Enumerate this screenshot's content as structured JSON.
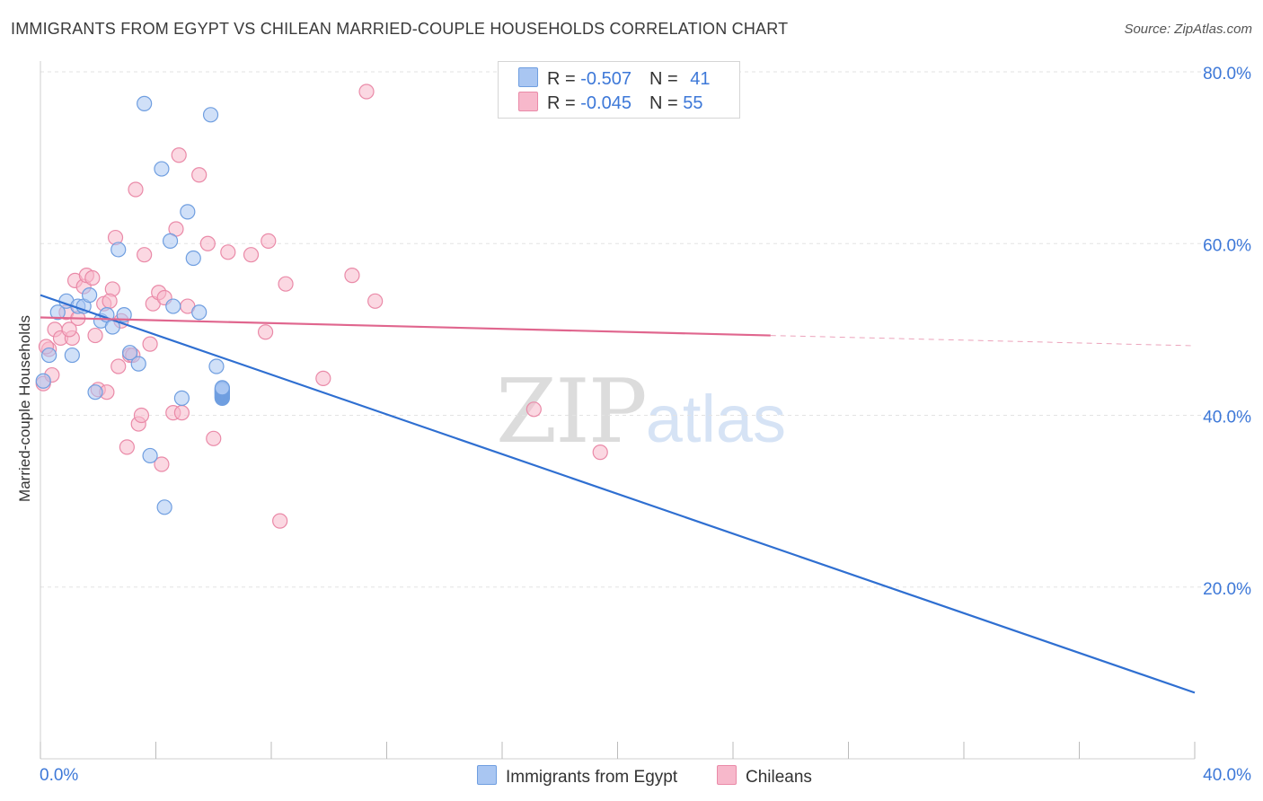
{
  "title": "IMMIGRANTS FROM EGYPT VS CHILEAN MARRIED-COUPLE HOUSEHOLDS CORRELATION CHART",
  "source": "Source: ZipAtlas.com",
  "watermark": {
    "part1": "ZIP",
    "part2": "atlas"
  },
  "legend": {
    "rows": [
      {
        "r_label": "R = ",
        "r_value": "-0.507",
        "n_label": "N = ",
        "n_value": "41",
        "color": "#a9c6f2"
      },
      {
        "r_label": "R = ",
        "r_value": "-0.045",
        "n_label": "N = ",
        "n_value": "55",
        "color": "#f7b8cb"
      }
    ]
  },
  "bottom_legend": [
    {
      "label": "Immigrants from Egypt",
      "color": "#a9c6f2"
    },
    {
      "label": "Chileans",
      "color": "#f7b8cb"
    }
  ],
  "chart_data": {
    "type": "scatter",
    "title": "IMMIGRANTS FROM EGYPT VS CHILEAN MARRIED-COUPLE HOUSEHOLDS CORRELATION CHART",
    "xlabel": "",
    "ylabel": "Married-couple Households",
    "xlim": [
      0,
      40
    ],
    "ylim": [
      0,
      80
    ],
    "x_tick_labels": [
      "0.0%",
      "40.0%"
    ],
    "y_tick_labels": [
      "20.0%",
      "40.0%",
      "60.0%",
      "80.0%"
    ],
    "y_ticks": [
      20,
      40,
      60,
      80
    ],
    "grid": true,
    "colors": {
      "egypt_fill": "#a9c6f2",
      "egypt_stroke": "#6f9ee0",
      "egypt_line": "#2f6fd1",
      "chile_fill": "#f7b8cb",
      "chile_stroke": "#ea8aa8",
      "chile_line": "#e0668e"
    },
    "series": [
      {
        "name": "Immigrants from Egypt",
        "points": [
          [
            0.1,
            44.0
          ],
          [
            0.3,
            47.0
          ],
          [
            0.6,
            52.0
          ],
          [
            0.9,
            53.3
          ],
          [
            1.1,
            47.0
          ],
          [
            1.3,
            52.7
          ],
          [
            1.5,
            52.7
          ],
          [
            1.7,
            54.0
          ],
          [
            1.9,
            42.7
          ],
          [
            2.1,
            51.0
          ],
          [
            2.3,
            51.7
          ],
          [
            2.5,
            50.3
          ],
          [
            2.7,
            59.3
          ],
          [
            2.9,
            51.7
          ],
          [
            3.1,
            47.3
          ],
          [
            3.4,
            46.0
          ],
          [
            3.6,
            76.3
          ],
          [
            3.8,
            35.3
          ],
          [
            4.2,
            68.7
          ],
          [
            4.3,
            29.3
          ],
          [
            4.5,
            60.3
          ],
          [
            4.6,
            52.7
          ],
          [
            4.9,
            42.0
          ],
          [
            5.1,
            63.7
          ],
          [
            5.3,
            58.3
          ],
          [
            5.5,
            52.0
          ],
          [
            5.9,
            75.0
          ],
          [
            6.1,
            45.7
          ],
          [
            6.3,
            42.0
          ],
          [
            6.3,
            42.1
          ],
          [
            6.3,
            42.2
          ],
          [
            6.3,
            42.3
          ],
          [
            6.3,
            42.4
          ],
          [
            6.3,
            42.5
          ],
          [
            6.3,
            42.6
          ],
          [
            6.3,
            42.7
          ],
          [
            6.3,
            42.8
          ],
          [
            6.3,
            42.9
          ],
          [
            6.3,
            43.0
          ],
          [
            6.3,
            43.1
          ],
          [
            6.3,
            43.2
          ]
        ]
      },
      {
        "name": "Chileans",
        "points": [
          [
            0.1,
            43.7
          ],
          [
            0.3,
            47.7
          ],
          [
            0.5,
            50.0
          ],
          [
            0.7,
            49.0
          ],
          [
            0.9,
            52.0
          ],
          [
            1.1,
            49.0
          ],
          [
            1.2,
            55.7
          ],
          [
            1.3,
            51.3
          ],
          [
            1.5,
            55.0
          ],
          [
            1.6,
            56.3
          ],
          [
            1.8,
            56.0
          ],
          [
            1.9,
            49.3
          ],
          [
            2.0,
            43.0
          ],
          [
            2.2,
            53.0
          ],
          [
            2.3,
            42.7
          ],
          [
            2.5,
            54.7
          ],
          [
            2.6,
            60.7
          ],
          [
            2.7,
            45.7
          ],
          [
            2.8,
            51.0
          ],
          [
            3.0,
            36.3
          ],
          [
            3.1,
            47.0
          ],
          [
            3.3,
            66.3
          ],
          [
            3.4,
            39.0
          ],
          [
            3.5,
            40.0
          ],
          [
            3.6,
            58.7
          ],
          [
            3.8,
            48.3
          ],
          [
            3.9,
            53.0
          ],
          [
            4.1,
            54.3
          ],
          [
            4.2,
            34.3
          ],
          [
            4.3,
            53.7
          ],
          [
            4.6,
            40.3
          ],
          [
            4.7,
            61.7
          ],
          [
            4.8,
            70.3
          ],
          [
            4.9,
            40.3
          ],
          [
            5.1,
            52.7
          ],
          [
            5.5,
            68.0
          ],
          [
            5.8,
            60.0
          ],
          [
            6.0,
            37.3
          ],
          [
            6.5,
            59.0
          ],
          [
            7.3,
            58.7
          ],
          [
            7.8,
            49.7
          ],
          [
            7.9,
            60.3
          ],
          [
            8.3,
            27.7
          ],
          [
            8.5,
            55.3
          ],
          [
            9.8,
            44.3
          ],
          [
            10.8,
            56.3
          ],
          [
            11.3,
            77.7
          ],
          [
            11.6,
            53.3
          ],
          [
            17.1,
            40.7
          ],
          [
            19.4,
            35.7
          ],
          [
            0.2,
            48.0
          ],
          [
            0.4,
            44.7
          ],
          [
            1.0,
            50.0
          ],
          [
            2.4,
            53.3
          ],
          [
            3.2,
            47.0
          ]
        ]
      }
    ],
    "trend_lines": [
      {
        "series": "Immigrants from Egypt",
        "from": [
          0,
          54.0
        ],
        "to": [
          40,
          7.7
        ],
        "style": "solid"
      },
      {
        "series": "Chileans",
        "from": [
          0,
          51.4
        ],
        "to": [
          25.3,
          49.3
        ],
        "style": "solid"
      },
      {
        "series": "Chileans",
        "from": [
          25.3,
          49.3
        ],
        "to": [
          40,
          48.1
        ],
        "style": "dashed"
      }
    ]
  }
}
